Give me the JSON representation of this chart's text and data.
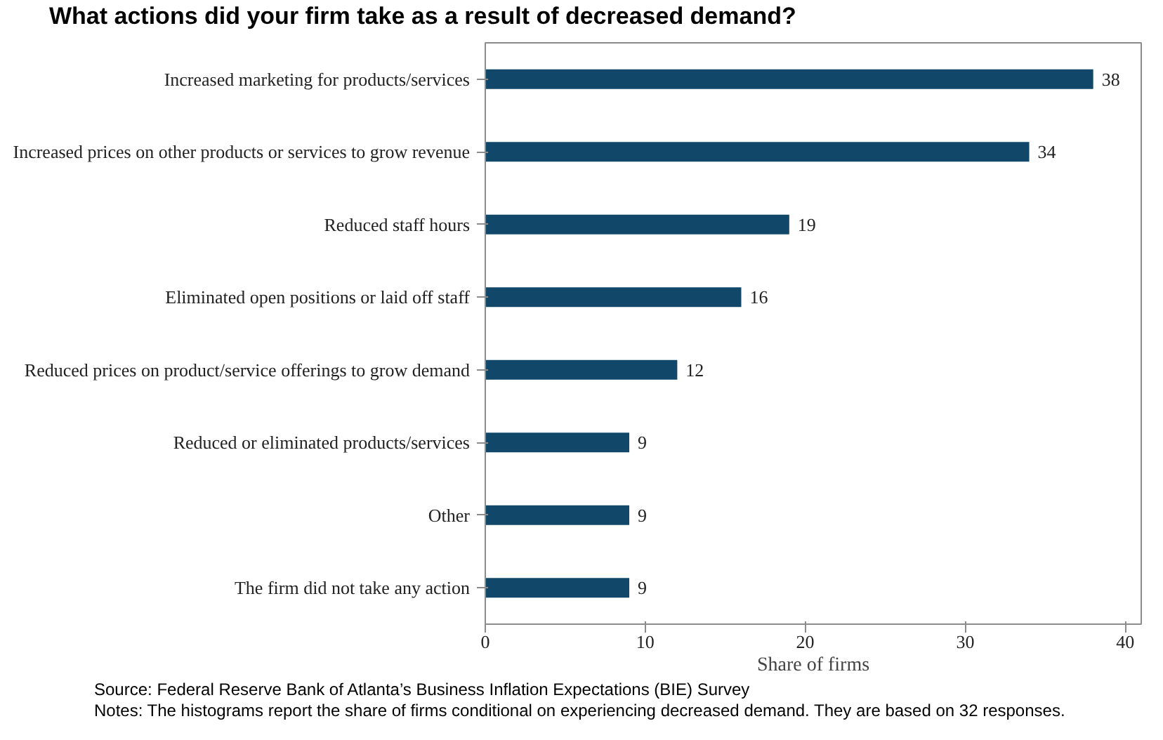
{
  "chart_data": {
    "type": "bar",
    "orientation": "horizontal",
    "title": "What actions did your firm take as a result of decreased demand?",
    "xlabel": "Share of firms",
    "categories": [
      "Increased marketing for products/services",
      "Increased prices on other products or services to grow revenue",
      "Reduced staff hours",
      "Eliminated open positions or laid off staff",
      "Reduced prices on product/service offerings to grow demand",
      "Reduced or eliminated products/services",
      "Other",
      "The firm did not take any action"
    ],
    "values": [
      38,
      34,
      19,
      16,
      12,
      9,
      9,
      9
    ],
    "color": "#11486a",
    "xlim": [
      0,
      41
    ],
    "xticks": [
      0,
      10,
      20,
      30,
      40
    ],
    "data_labels": true,
    "annotations": [
      "Source: Federal Reserve Bank of Atlanta’s Business Inflation Expectations (BIE) Survey",
      "Notes: The histograms report the share of firms conditional on experiencing decreased demand. They are based on 32 responses."
    ]
  }
}
